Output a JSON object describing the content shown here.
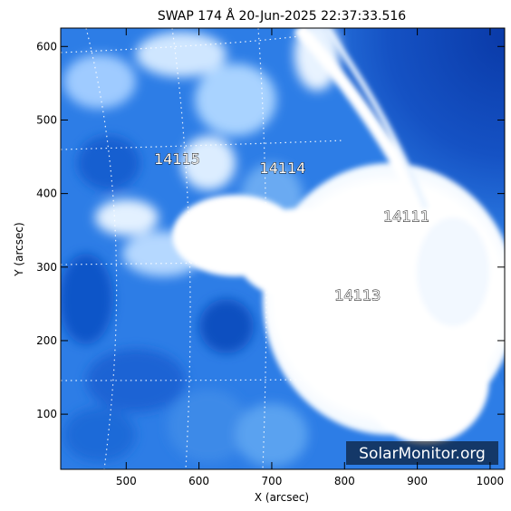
{
  "title": "SWAP 174 Å 20-Jun-2025 22:37:33.516",
  "xlabel": "X (arcsec)",
  "ylabel": "Y (arcsec)",
  "x_ticks": [
    "500",
    "600",
    "700",
    "800",
    "900",
    "1000"
  ],
  "y_ticks": [
    "100",
    "200",
    "300",
    "400",
    "500",
    "600"
  ],
  "x_range": [
    410,
    1020
  ],
  "y_range": [
    25,
    625
  ],
  "regions": [
    {
      "label": "14115",
      "x": 570,
      "y": 440
    },
    {
      "label": "14114",
      "x": 715,
      "y": 428
    },
    {
      "label": "14111",
      "x": 885,
      "y": 362
    },
    {
      "label": "14113",
      "x": 818,
      "y": 255
    }
  ],
  "watermark": "SolarMonitor.org",
  "colors": {
    "background": "#ffffff",
    "disk_blue": "#1a6ad8",
    "corona_blue": "#0b3fb0",
    "bright": "#ffffff"
  }
}
